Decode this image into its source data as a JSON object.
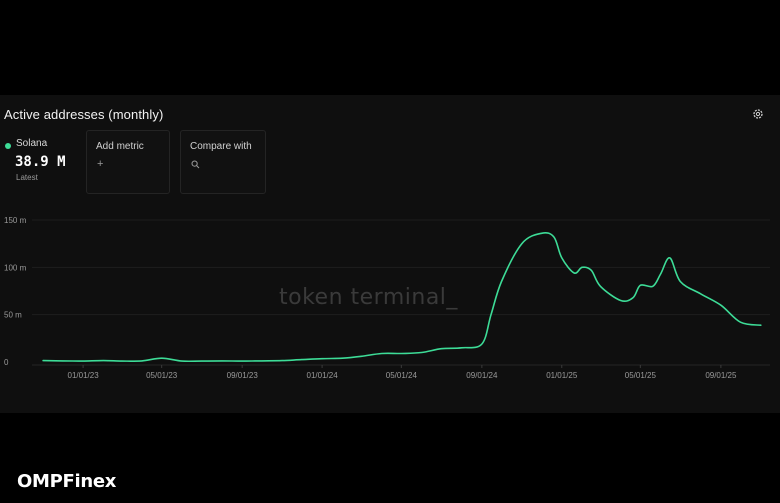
{
  "header": {
    "title": "Active addresses (monthly)",
    "settings_icon": "gear-icon"
  },
  "legend": {
    "series_name": "Solana",
    "value": "38.9 M",
    "sub_label": "Latest",
    "color": "#3ddc97"
  },
  "controls": {
    "add_metric": {
      "label": "Add metric",
      "icon": "plus-icon",
      "glyph": "+"
    },
    "compare_with": {
      "label": "Compare with",
      "icon": "search-icon"
    }
  },
  "watermark": "token terminal_",
  "brand": "OMPFinex",
  "chart_data": {
    "type": "line",
    "title": "Active addresses (monthly)",
    "ylabel": "",
    "xlabel": "",
    "ylim": [
      0,
      150
    ],
    "yunit": "m",
    "y_ticks": [
      0,
      50,
      100,
      150
    ],
    "y_tick_labels": [
      "0",
      "50 m",
      "100 m",
      "150 m"
    ],
    "x_tick_labels": [
      "01/01/23",
      "05/01/23",
      "09/01/23",
      "01/01/24",
      "05/01/24",
      "09/01/24",
      "01/01/25",
      "05/01/25",
      "09/01/25"
    ],
    "x_ticks": [
      "2023-01-01",
      "2023-05-01",
      "2023-09-01",
      "2024-01-01",
      "2024-05-01",
      "2024-09-01",
      "2025-01-01",
      "2025-05-01",
      "2025-09-01"
    ],
    "x_range": [
      "2022-10-15",
      "2025-11-15"
    ],
    "grid": true,
    "color": "#3ddc97",
    "series": [
      {
        "name": "Solana",
        "x": [
          "2022-11-01",
          "2022-12-01",
          "2023-01-01",
          "2023-02-01",
          "2023-03-01",
          "2023-04-01",
          "2023-05-01",
          "2023-06-01",
          "2023-07-01",
          "2023-08-01",
          "2023-09-01",
          "2023-10-01",
          "2023-11-01",
          "2023-12-01",
          "2024-01-01",
          "2024-02-01",
          "2024-03-01",
          "2024-04-01",
          "2024-05-01",
          "2024-06-01",
          "2024-07-01",
          "2024-08-01",
          "2024-09-01",
          "2024-09-15",
          "2024-10-01",
          "2024-11-01",
          "2024-12-01",
          "2024-12-20",
          "2025-01-01",
          "2025-01-20",
          "2025-02-01",
          "2025-02-15",
          "2025-03-01",
          "2025-04-01",
          "2025-04-20",
          "2025-05-01",
          "2025-05-20",
          "2025-06-01",
          "2025-06-15",
          "2025-07-01",
          "2025-08-01",
          "2025-09-01",
          "2025-10-01",
          "2025-11-01"
        ],
        "y": [
          1.5,
          1.2,
          1.0,
          1.5,
          1.0,
          1.2,
          4.0,
          1.0,
          1.0,
          1.2,
          1.0,
          1.2,
          1.5,
          2.5,
          3.5,
          4.0,
          6.0,
          9.0,
          9.0,
          10.0,
          14.0,
          15.0,
          19.0,
          50.0,
          85.0,
          125.0,
          136.0,
          132.0,
          110.0,
          94.0,
          100.0,
          97.0,
          80.0,
          65.0,
          68.0,
          81.0,
          80.0,
          93.0,
          110.0,
          85.0,
          72.0,
          60.0,
          42.0,
          38.9
        ]
      }
    ]
  }
}
